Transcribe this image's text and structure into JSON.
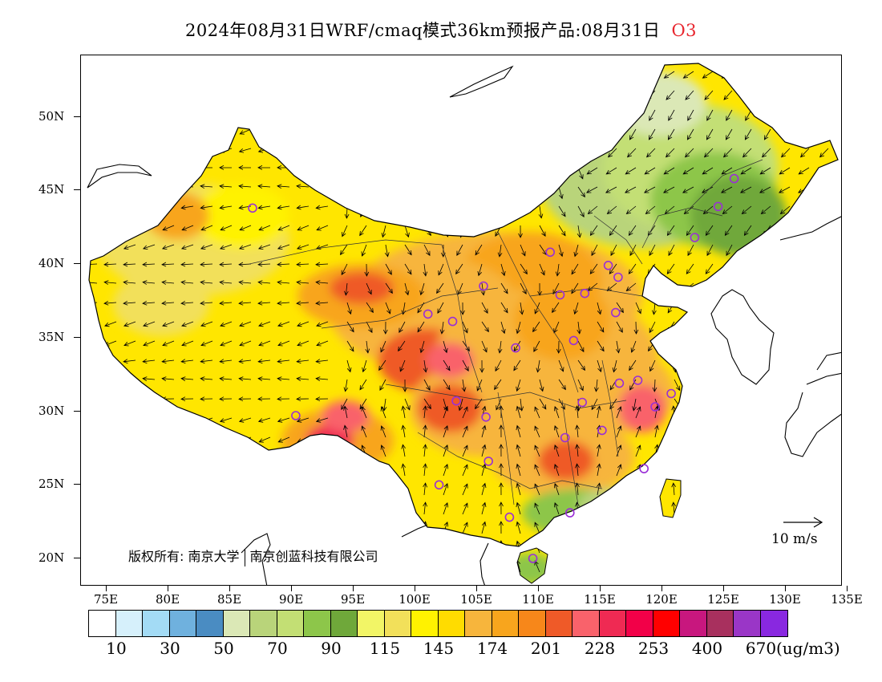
{
  "title": {
    "text": "2024年08月31日WRF/cmaq模式36km预报产品:08月31日",
    "species": "O3",
    "species_color": "#e8262e"
  },
  "axes": {
    "lat_labels": [
      "50N",
      "45N",
      "40N",
      "35N",
      "30N",
      "25N",
      "20N"
    ],
    "lon_labels": [
      "75E",
      "80E",
      "85E",
      "90E",
      "95E",
      "100E",
      "105E",
      "110E",
      "115E",
      "120E",
      "125E",
      "130E",
      "135E"
    ]
  },
  "credit": {
    "prefix": "版权所有:",
    "org1": "南京大学",
    "org2": "南京创蓝科技有限公司"
  },
  "wind_scale": {
    "label": "10 m/s"
  },
  "legend": {
    "colors": [
      "#ffffff",
      "#d6f0fb",
      "#a3dbf5",
      "#6fb1de",
      "#4a8cc2",
      "#dbe8b6",
      "#b9d47a",
      "#c3df74",
      "#8dc64a",
      "#6fa83a",
      "#f2f566",
      "#f2e05a",
      "#fff200",
      "#ffdc00",
      "#f7b53c",
      "#f8a51d",
      "#f7871a",
      "#ef5a28",
      "#f9626b",
      "#ef2a53",
      "#f20048",
      "#ff0000",
      "#c8177e",
      "#a8305e",
      "#9a36c7",
      "#8928e0"
    ],
    "labels": [
      "10",
      "30",
      "50",
      "70",
      "90",
      "115",
      "145",
      "174",
      "201",
      "228",
      "253",
      "400",
      "670"
    ],
    "unit": "(ug/m3)"
  },
  "stations": [
    {
      "lon": 87.6,
      "lat": 43.8
    },
    {
      "lon": 91.1,
      "lat": 29.7
    },
    {
      "lon": 101.8,
      "lat": 36.6
    },
    {
      "lon": 103.8,
      "lat": 36.1
    },
    {
      "lon": 106.3,
      "lat": 38.5
    },
    {
      "lon": 111.7,
      "lat": 40.8
    },
    {
      "lon": 112.5,
      "lat": 37.9
    },
    {
      "lon": 114.5,
      "lat": 38.0
    },
    {
      "lon": 116.4,
      "lat": 39.9
    },
    {
      "lon": 117.2,
      "lat": 39.1
    },
    {
      "lon": 117.0,
      "lat": 36.7
    },
    {
      "lon": 113.6,
      "lat": 34.8
    },
    {
      "lon": 108.9,
      "lat": 34.3
    },
    {
      "lon": 104.1,
      "lat": 30.7
    },
    {
      "lon": 106.5,
      "lat": 29.6
    },
    {
      "lon": 106.7,
      "lat": 26.6
    },
    {
      "lon": 102.7,
      "lat": 25.0
    },
    {
      "lon": 108.4,
      "lat": 22.8
    },
    {
      "lon": 110.3,
      "lat": 20.0
    },
    {
      "lon": 113.3,
      "lat": 23.1
    },
    {
      "lon": 112.9,
      "lat": 28.2
    },
    {
      "lon": 115.9,
      "lat": 28.7
    },
    {
      "lon": 114.3,
      "lat": 30.6
    },
    {
      "lon": 117.3,
      "lat": 31.9
    },
    {
      "lon": 118.8,
      "lat": 32.1
    },
    {
      "lon": 120.2,
      "lat": 30.3
    },
    {
      "lon": 121.5,
      "lat": 31.2
    },
    {
      "lon": 119.3,
      "lat": 26.1
    },
    {
      "lon": 123.4,
      "lat": 41.8
    },
    {
      "lon": 125.3,
      "lat": 43.9
    },
    {
      "lon": 126.6,
      "lat": 45.8
    }
  ]
}
